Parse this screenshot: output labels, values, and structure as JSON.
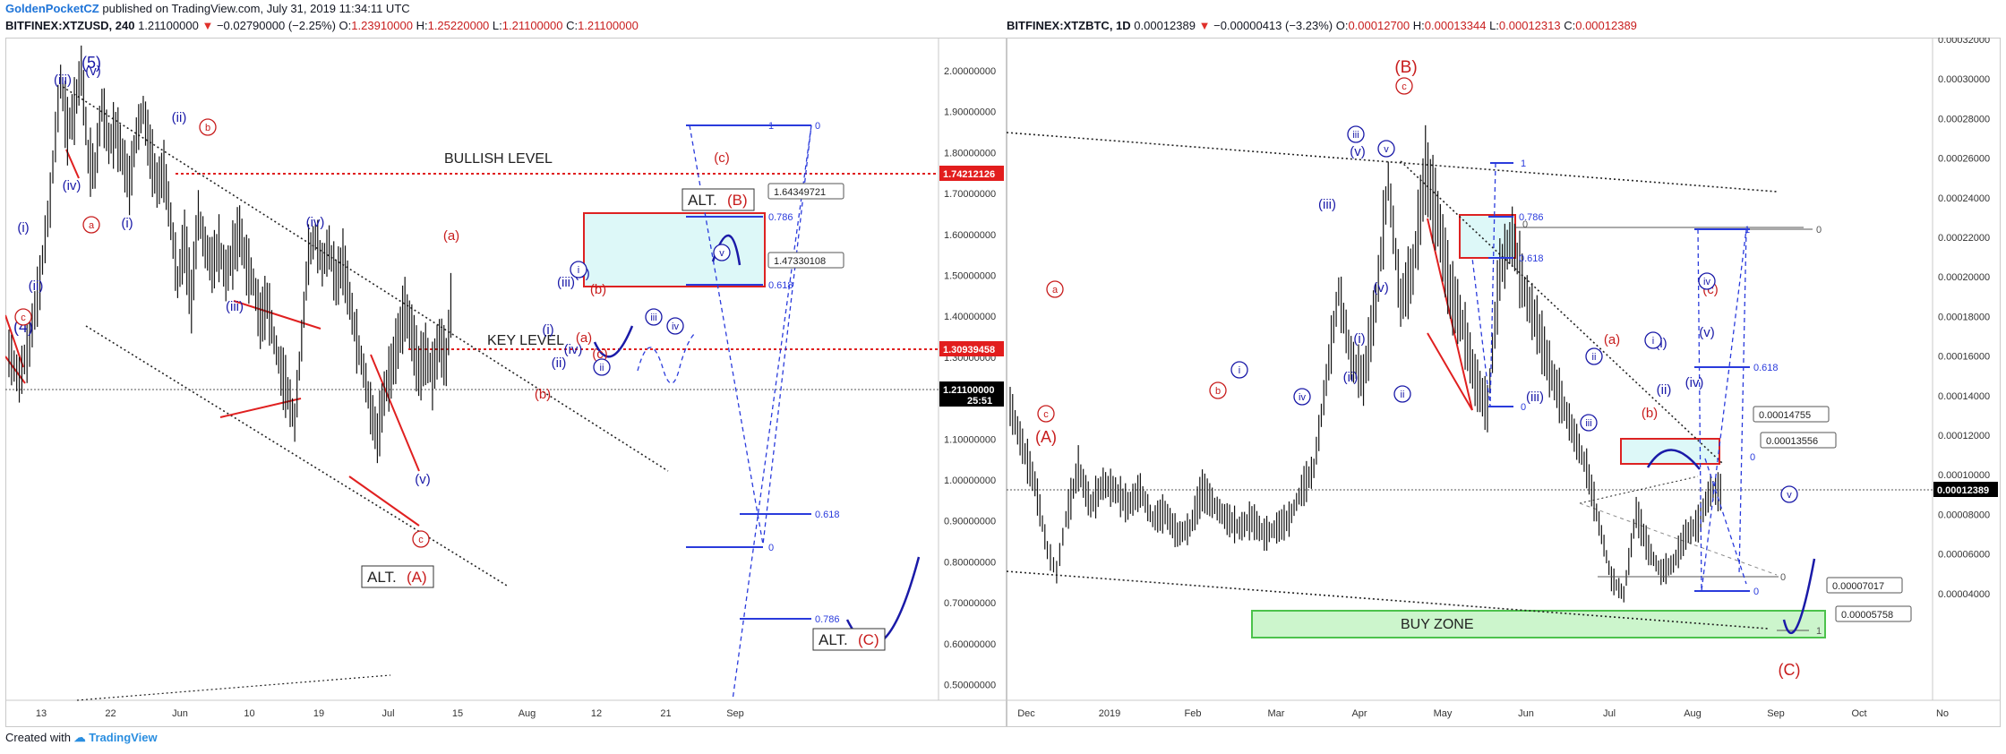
{
  "header": {
    "author": "GoldenPocketCZ",
    "published": "published on TradingView.com, July 31, 2019 11:34:11 UTC"
  },
  "footer": {
    "created_with": "Created with",
    "brand": "TradingView"
  },
  "colors": {
    "bearish_red": "#c81d1d",
    "wave_blue": "#1a1aa8",
    "fib_blue": "#2a3bdc",
    "zone_cyan": "#ddf8f8",
    "buy_zone_green": "#ccf5cc",
    "candle": "#111111"
  },
  "chart_data": [
    {
      "type": "candlestick",
      "symbol_line": "BITFINEX:XTZUSD, 240",
      "last": "1.21100000",
      "change": "−0.02790000 (−2.25%)",
      "ohlc": {
        "O": "1.23910000",
        "H": "1.25220000",
        "L": "1.21100000",
        "C": "1.21100000"
      },
      "countdown": "25:51",
      "x_ticks": [
        "13",
        "22",
        "Jun",
        "10",
        "19",
        "Jul",
        "15",
        "Aug",
        "12",
        "21",
        "Sep"
      ],
      "y_ticks": [
        "2.00000000",
        "1.90000000",
        "1.80000000",
        "1.70000000",
        "1.60000000",
        "1.50000000",
        "1.40000000",
        "1.30000000",
        "1.20000000",
        "1.10000000",
        "1.00000000",
        "0.90000000",
        "0.80000000",
        "0.70000000",
        "0.60000000",
        "0.50000000"
      ],
      "ylim": [
        0.46,
        2.1
      ],
      "log_scale": true,
      "levels": [
        {
          "label": "BULLISH LEVEL",
          "value": 1.74212126,
          "value_text": "1.74212126"
        },
        {
          "label": "KEY LEVEL",
          "value": 1.30939458,
          "value_text": "1.30939458"
        },
        {
          "label": "",
          "value": 1.211,
          "value_text": "1.21100000"
        }
      ],
      "zone": {
        "top": 1.64349721,
        "bottom": 1.473301,
        "top_text": "1.64349721",
        "bottom_text": "1.47330108"
      },
      "fib_labels": [
        "0",
        "1",
        "0.786",
        "0.618",
        "0.618",
        "0",
        "0.786"
      ],
      "price_path": [
        [
          0,
          1.02
        ],
        [
          3,
          0.96
        ],
        [
          6,
          1.05
        ],
        [
          9,
          1.2
        ],
        [
          12,
          1.45
        ],
        [
          15,
          1.9
        ],
        [
          17,
          1.7
        ],
        [
          19,
          1.78
        ],
        [
          21,
          1.95
        ],
        [
          23,
          1.6
        ],
        [
          25,
          1.55
        ],
        [
          27,
          1.8
        ],
        [
          29,
          1.65
        ],
        [
          31,
          1.7
        ],
        [
          33,
          1.6
        ],
        [
          35,
          1.5
        ],
        [
          37,
          1.68
        ],
        [
          39,
          1.78
        ],
        [
          41,
          1.62
        ],
        [
          43,
          1.5
        ],
        [
          45,
          1.55
        ],
        [
          47,
          1.38
        ],
        [
          49,
          1.2
        ],
        [
          51,
          1.32
        ],
        [
          53,
          1.15
        ],
        [
          55,
          1.4
        ],
        [
          57,
          1.3
        ],
        [
          59,
          1.25
        ],
        [
          61,
          1.3
        ],
        [
          63,
          1.22
        ],
        [
          65,
          1.28
        ],
        [
          67,
          1.35
        ],
        [
          69,
          1.25
        ],
        [
          71,
          1.2
        ],
        [
          73,
          1.1
        ],
        [
          75,
          1.15
        ],
        [
          77,
          1.05
        ],
        [
          79,
          0.98
        ],
        [
          81,
          0.93
        ],
        [
          83,
          0.87
        ],
        [
          85,
          1.05
        ],
        [
          87,
          1.28
        ],
        [
          89,
          1.33
        ],
        [
          91,
          1.25
        ],
        [
          93,
          1.3
        ],
        [
          95,
          1.2
        ],
        [
          97,
          1.26
        ],
        [
          99,
          1.15
        ],
        [
          101,
          1.05
        ],
        [
          103,
          0.98
        ],
        [
          105,
          0.9
        ],
        [
          107,
          0.84
        ],
        [
          109,
          0.93
        ],
        [
          111,
          0.98
        ],
        [
          113,
          1.05
        ],
        [
          115,
          1.13
        ],
        [
          117,
          1.07
        ],
        [
          119,
          0.98
        ],
        [
          121,
          1.02
        ],
        [
          123,
          0.97
        ],
        [
          125,
          1.05
        ],
        [
          127,
          1.0
        ],
        [
          129,
          1.21
        ]
      ],
      "annotations": [
        {
          "text": "(5)",
          "color": "blue"
        },
        {
          "text": "(iii)",
          "color": "blue"
        },
        {
          "text": "(v)",
          "color": "blue"
        },
        {
          "text": "(ii)",
          "color": "blue"
        },
        {
          "text": "(iv)",
          "color": "blue"
        },
        {
          "text": "(i)",
          "color": "blue"
        },
        {
          "text": "(ii)",
          "color": "blue"
        },
        {
          "text": "(i)",
          "color": "blue"
        },
        {
          "text": "(4)",
          "color": "blue"
        },
        {
          "text": "(iii)",
          "color": "blue"
        },
        {
          "text": "(iv)",
          "color": "blue"
        },
        {
          "text": "(v)",
          "color": "blue"
        },
        {
          "text": "(iii)",
          "color": "blue"
        },
        {
          "text": "(v)",
          "color": "blue"
        },
        {
          "text": "(i)",
          "color": "blue"
        },
        {
          "text": "(ii)",
          "color": "blue"
        },
        {
          "text": "(iv)",
          "color": "blue"
        },
        {
          "text": "(a)",
          "color": "red"
        },
        {
          "text": "(b)",
          "color": "red"
        },
        {
          "text": "(a)",
          "color": "red"
        },
        {
          "text": "(c)",
          "color": "red"
        },
        {
          "text": "(b)",
          "color": "red"
        },
        {
          "text": "(c)",
          "color": "red"
        }
      ],
      "circled": [
        {
          "text": "b",
          "color": "red"
        },
        {
          "text": "a",
          "color": "red"
        },
        {
          "text": "c",
          "color": "red"
        },
        {
          "text": "c",
          "color": "red"
        },
        {
          "text": "i",
          "color": "blue"
        },
        {
          "text": "ii",
          "color": "blue"
        },
        {
          "text": "iii",
          "color": "blue"
        },
        {
          "text": "iv",
          "color": "blue"
        },
        {
          "text": "v",
          "color": "blue"
        }
      ],
      "alt_labels": [
        {
          "prefix": "ALT.",
          "wave": "(A)"
        },
        {
          "prefix": "ALT.",
          "wave": "(B)"
        },
        {
          "prefix": "ALT.",
          "wave": "(C)"
        }
      ]
    },
    {
      "type": "candlestick",
      "symbol_line": "BITFINEX:XTZBTC, 1D",
      "last": "0.00012389",
      "change": "−0.00000413 (−3.23%)",
      "ohlc": {
        "O": "0.00012700",
        "H": "0.00013344",
        "L": "0.00012313",
        "C": "0.00012389"
      },
      "x_ticks": [
        "Dec",
        "2019",
        "Feb",
        "Mar",
        "Apr",
        "May",
        "Jun",
        "Jul",
        "Aug",
        "Sep",
        "Oct",
        "No"
      ],
      "y_ticks": [
        "0.00032000",
        "0.00030000",
        "0.00028000",
        "0.00026000",
        "0.00024000",
        "0.00022000",
        "0.00020000",
        "0.00018000",
        "0.00016000",
        "0.00014000",
        "0.00012000",
        "0.00010000",
        "0.00008000",
        "0.00006000",
        "0.00004000"
      ],
      "ylim": [
        3e-05,
        0.00033
      ],
      "zone": {
        "top": 0.00014755,
        "bottom": 0.00013556,
        "top_text": "0.00014755",
        "bottom_text": "0.00013556"
      },
      "buy_zone": {
        "label": "BUY ZONE",
        "top": 7.017e-05,
        "bottom": 5.758e-05,
        "top_text": "0.00007017",
        "bottom_text": "0.00005758"
      },
      "fib_labels": [
        "0.786",
        "0.618",
        "1",
        "0",
        "0",
        "0.618",
        "0",
        "1",
        "0",
        "0",
        "0",
        "1"
      ],
      "price_path": [
        [
          0,
          0.000163
        ],
        [
          4,
          0.000145
        ],
        [
          8,
          0.000128
        ],
        [
          12,
          9.8e-05
        ],
        [
          15,
          8.8e-05
        ],
        [
          18,
          0.000112
        ],
        [
          22,
          0.000135
        ],
        [
          26,
          0.000118
        ],
        [
          30,
          0.000128
        ],
        [
          34,
          0.000125
        ],
        [
          38,
          0.000118
        ],
        [
          42,
          0.000125
        ],
        [
          46,
          0.000112
        ],
        [
          50,
          0.000115
        ],
        [
          54,
          0.000105
        ],
        [
          58,
          0.000108
        ],
        [
          62,
          0.000125
        ],
        [
          66,
          0.000118
        ],
        [
          70,
          0.000112
        ],
        [
          74,
          0.000108
        ],
        [
          78,
          0.000112
        ],
        [
          82,
          0.000105
        ],
        [
          86,
          0.000108
        ],
        [
          90,
          0.000112
        ],
        [
          94,
          0.000125
        ],
        [
          98,
          0.000135
        ],
        [
          102,
          0.000175
        ],
        [
          106,
          0.000215
        ],
        [
          110,
          0.000185
        ],
        [
          114,
          0.000175
        ],
        [
          118,
          0.00021
        ],
        [
          122,
          0.000265
        ],
        [
          126,
          0.00021
        ],
        [
          130,
          0.000225
        ],
        [
          134,
          0.00027
        ],
        [
          138,
          0.000248
        ],
        [
          142,
          0.000215
        ],
        [
          146,
          0.0002
        ],
        [
          150,
          0.000175
        ],
        [
          154,
          0.000162
        ],
        [
          158,
          0.000225
        ],
        [
          162,
          0.00024
        ],
        [
          166,
          0.000215
        ],
        [
          170,
          0.0002
        ],
        [
          174,
          0.00018
        ],
        [
          178,
          0.000165
        ],
        [
          182,
          0.00015
        ],
        [
          186,
          0.000135
        ],
        [
          190,
          0.00011
        ],
        [
          194,
          8.5e-05
        ],
        [
          198,
          7.8e-05
        ],
        [
          202,
          0.000115
        ],
        [
          206,
          9.8e-05
        ],
        [
          210,
          8.8e-05
        ],
        [
          214,
          9.2e-05
        ],
        [
          218,
          0.000105
        ],
        [
          222,
          0.00011
        ],
        [
          226,
          0.000125
        ],
        [
          230,
          0.000124
        ]
      ],
      "annotations": [
        {
          "text": "(B)",
          "color": "red"
        },
        {
          "text": "(A)",
          "color": "red"
        },
        {
          "text": "(C)",
          "color": "red"
        },
        {
          "text": "(v)",
          "color": "blue"
        },
        {
          "text": "(iii)",
          "color": "blue"
        },
        {
          "text": "(v)",
          "color": "blue"
        },
        {
          "text": "(i)",
          "color": "blue"
        },
        {
          "text": "(ii)",
          "color": "blue"
        },
        {
          "text": "(iii)",
          "color": "blue"
        },
        {
          "text": "(i)",
          "color": "blue"
        },
        {
          "text": "(ii)",
          "color": "blue"
        },
        {
          "text": "(iv)",
          "color": "blue"
        },
        {
          "text": "(v)",
          "color": "blue"
        },
        {
          "text": "(a)",
          "color": "red"
        },
        {
          "text": "(b)",
          "color": "red"
        },
        {
          "text": "(c)",
          "color": "red"
        }
      ],
      "circled": [
        {
          "text": "c",
          "color": "red"
        },
        {
          "text": "a",
          "color": "red"
        },
        {
          "text": "b",
          "color": "red"
        },
        {
          "text": "c",
          "color": "red"
        },
        {
          "text": "iii",
          "color": "blue"
        },
        {
          "text": "v",
          "color": "blue"
        },
        {
          "text": "ii",
          "color": "blue"
        },
        {
          "text": "i",
          "color": "blue"
        },
        {
          "text": "iv",
          "color": "blue"
        },
        {
          "text": "ii",
          "color": "blue"
        },
        {
          "text": "i",
          "color": "blue"
        },
        {
          "text": "iii",
          "color": "blue"
        },
        {
          "text": "iv",
          "color": "blue"
        },
        {
          "text": "v",
          "color": "blue"
        }
      ]
    }
  ]
}
